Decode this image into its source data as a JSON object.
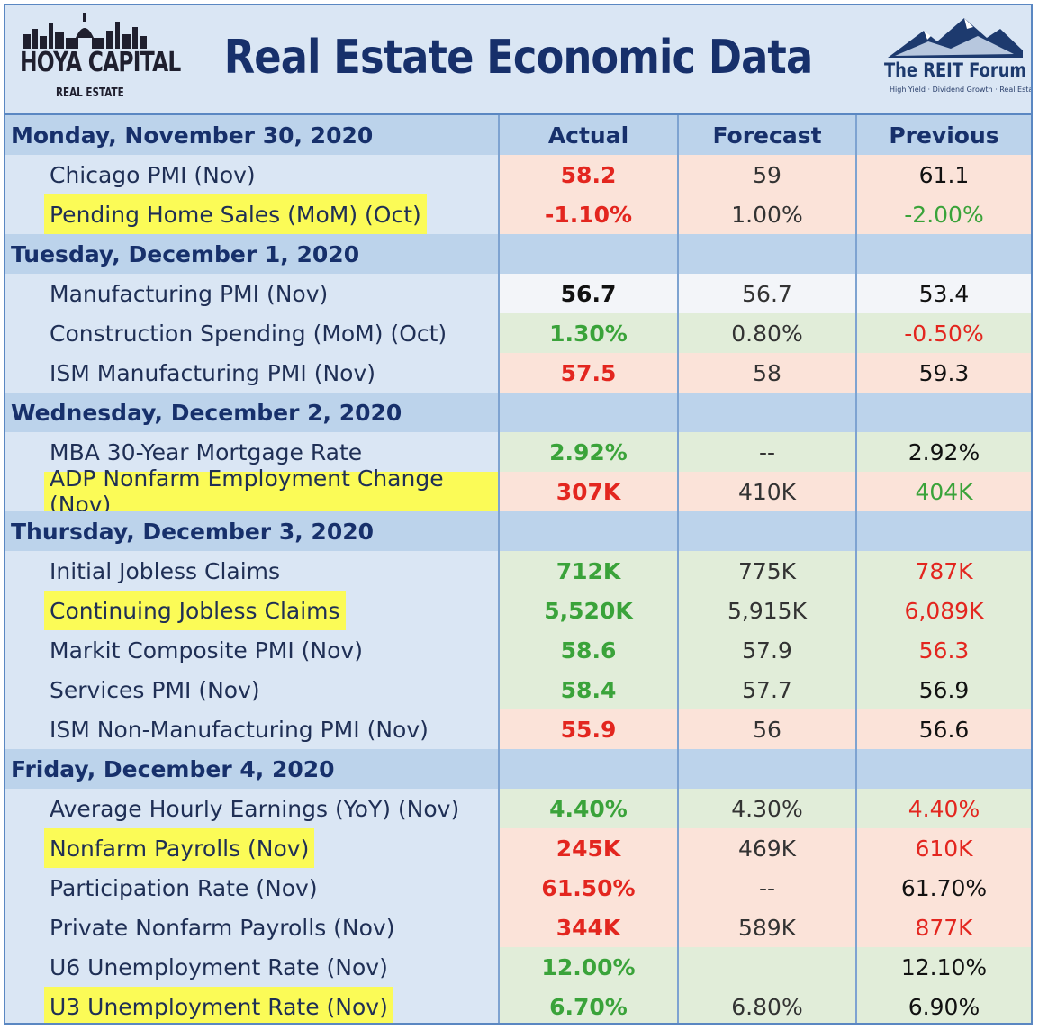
{
  "title": "Real Estate Economic Data",
  "logo_left": {
    "name": "HOYA CAPITAL",
    "sub": "REAL ESTATE"
  },
  "logo_right": {
    "name": "The REIT Forum",
    "tagline": "High Yield · Dividend Growth · Real Estate"
  },
  "columns": [
    "Actual",
    "Forecast",
    "Previous"
  ],
  "colors": {
    "red": "#e3261f",
    "green": "#3aa33a",
    "highlight": "#fbfb57",
    "pink_bg": "#fbe3d9",
    "green_bg": "#e1edd9",
    "header_bg": "#bcd3eb",
    "title": "#17306b"
  },
  "sections": [
    {
      "date": "Monday, November 30, 2020",
      "rows": [
        {
          "name": "Chicago PMI (Nov)",
          "highlight": false,
          "bg": "pink",
          "actual": "58.2",
          "actual_color": "red",
          "forecast": "59",
          "previous": "61.1",
          "previous_color": "black"
        },
        {
          "name": "Pending Home Sales (MoM) (Oct)",
          "highlight": true,
          "bg": "pink",
          "actual": "-1.10%",
          "actual_color": "red",
          "forecast": "1.00%",
          "previous": "-2.00%",
          "previous_color": "green"
        }
      ]
    },
    {
      "date": "Tuesday, December 1, 2020",
      "rows": [
        {
          "name": "Manufacturing PMI (Nov)",
          "highlight": false,
          "bg": "white",
          "actual": "56.7",
          "actual_color": "black",
          "forecast": "56.7",
          "previous": "53.4",
          "previous_color": "black"
        },
        {
          "name": "Construction Spending (MoM) (Oct)",
          "highlight": false,
          "bg": "green",
          "actual": "1.30%",
          "actual_color": "green",
          "forecast": "0.80%",
          "previous": "-0.50%",
          "previous_color": "red"
        },
        {
          "name": "ISM Manufacturing PMI (Nov)",
          "highlight": false,
          "bg": "pink",
          "actual": "57.5",
          "actual_color": "red",
          "forecast": "58",
          "previous": "59.3",
          "previous_color": "black"
        }
      ]
    },
    {
      "date": "Wednesday, December 2, 2020",
      "rows": [
        {
          "name": "MBA 30-Year Mortgage Rate",
          "highlight": false,
          "bg": "green",
          "actual": "2.92%",
          "actual_color": "green",
          "forecast": "--",
          "previous": "2.92%",
          "previous_color": "black"
        },
        {
          "name": "ADP Nonfarm Employment Change (Nov)",
          "highlight": true,
          "bg": "pink",
          "actual": "307K",
          "actual_color": "red",
          "forecast": "410K",
          "previous": "404K",
          "previous_color": "green"
        }
      ]
    },
    {
      "date": "Thursday, December 3, 2020",
      "rows": [
        {
          "name": "Initial Jobless Claims",
          "highlight": false,
          "bg": "green",
          "actual": "712K",
          "actual_color": "green",
          "forecast": "775K",
          "previous": "787K",
          "previous_color": "red"
        },
        {
          "name": "Continuing Jobless Claims",
          "highlight": true,
          "bg": "green",
          "actual": "5,520K",
          "actual_color": "green",
          "forecast": "5,915K",
          "previous": "6,089K",
          "previous_color": "red"
        },
        {
          "name": "Markit Composite PMI (Nov)",
          "highlight": false,
          "bg": "green",
          "actual": "58.6",
          "actual_color": "green",
          "forecast": "57.9",
          "previous": "56.3",
          "previous_color": "red"
        },
        {
          "name": "Services PMI (Nov)",
          "highlight": false,
          "bg": "green",
          "actual": "58.4",
          "actual_color": "green",
          "forecast": "57.7",
          "previous": "56.9",
          "previous_color": "black"
        },
        {
          "name": "ISM Non-Manufacturing PMI (Nov)",
          "highlight": false,
          "bg": "pink",
          "actual": "55.9",
          "actual_color": "red",
          "forecast": "56",
          "previous": "56.6",
          "previous_color": "black"
        }
      ]
    },
    {
      "date": "Friday, December 4, 2020",
      "rows": [
        {
          "name": "Average Hourly Earnings (YoY) (Nov)",
          "highlight": false,
          "bg": "green",
          "actual": "4.40%",
          "actual_color": "green",
          "forecast": "4.30%",
          "previous": "4.40%",
          "previous_color": "red"
        },
        {
          "name": "Nonfarm Payrolls (Nov)",
          "highlight": true,
          "bg": "pink",
          "actual": "245K",
          "actual_color": "red",
          "forecast": "469K",
          "previous": "610K",
          "previous_color": "red"
        },
        {
          "name": "Participation Rate (Nov)",
          "highlight": false,
          "bg": "pink",
          "actual": "61.50%",
          "actual_color": "red",
          "forecast": "--",
          "previous": "61.70%",
          "previous_color": "black"
        },
        {
          "name": "Private Nonfarm Payrolls (Nov)",
          "highlight": false,
          "bg": "pink",
          "actual": "344K",
          "actual_color": "red",
          "forecast": "589K",
          "previous": "877K",
          "previous_color": "red"
        },
        {
          "name": "U6 Unemployment Rate (Nov)",
          "highlight": false,
          "bg": "green",
          "actual": "12.00%",
          "actual_color": "green",
          "forecast": "",
          "previous": "12.10%",
          "previous_color": "black"
        },
        {
          "name": "U3 Unemployment Rate (Nov)",
          "highlight": true,
          "bg": "green",
          "actual": "6.70%",
          "actual_color": "green",
          "forecast": "6.80%",
          "previous": "6.90%",
          "previous_color": "black"
        }
      ]
    }
  ]
}
